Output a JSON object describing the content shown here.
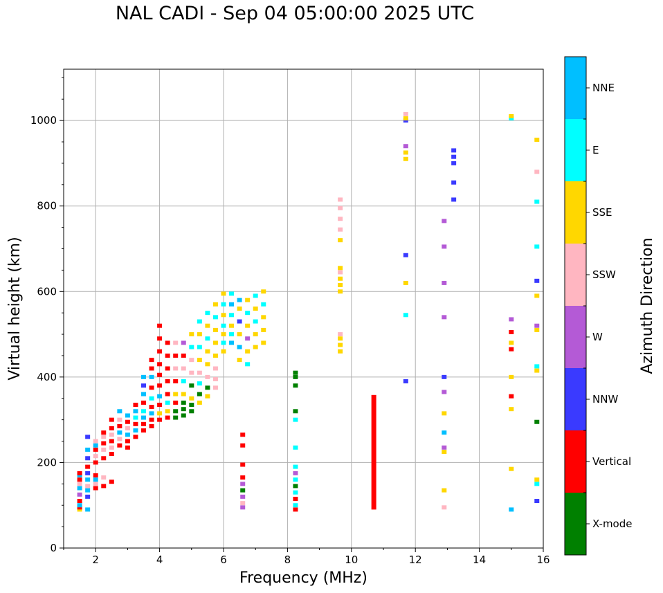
{
  "title": "NAL CADI - Sep 04 05:00:00 2025 UTC",
  "chart_data": {
    "type": "scatter",
    "title": "NAL CADI - Sep 04 05:00:00 2025 UTC",
    "xlabel": "Frequency (MHz)",
    "ylabel": "Virtual height (km)",
    "xlim": [
      1,
      16
    ],
    "ylim": [
      0,
      1120
    ],
    "xticks": [
      2,
      4,
      6,
      8,
      10,
      12,
      14,
      16
    ],
    "yticks": [
      0,
      200,
      400,
      600,
      800,
      1000
    ],
    "grid": true,
    "colorbar": {
      "label": "Azimuth Direction",
      "categories": [
        {
          "name": "X-mode",
          "color": "#008000"
        },
        {
          "name": "Vertical",
          "color": "#ff0000"
        },
        {
          "name": "NNW",
          "color": "#3a3aff"
        },
        {
          "name": "W",
          "color": "#b45ad6"
        },
        {
          "name": "SSW",
          "color": "#ffb6c1"
        },
        {
          "name": "SSE",
          "color": "#ffd700"
        },
        {
          "name": "E",
          "color": "#00ffff"
        },
        {
          "name": "NNE",
          "color": "#00bfff"
        }
      ]
    },
    "cluster_columns": [
      {
        "f": 1.5,
        "heights": [
          90,
          95,
          100,
          110,
          125,
          140,
          150,
          160,
          170,
          175
        ],
        "cats": [
          "SSE",
          "Vertical",
          "NNE",
          "Vertical",
          "W",
          "NNE",
          "SSW",
          "Vertical",
          "NNE",
          "Vertical"
        ]
      },
      {
        "f": 1.75,
        "heights": [
          90,
          120,
          135,
          145,
          160,
          175,
          190,
          210,
          230,
          260
        ],
        "cats": [
          "NNE",
          "NNW",
          "NNE",
          "SSW",
          "NNE",
          "NNW",
          "Vertical",
          "NNW",
          "NNE",
          "NNW"
        ]
      },
      {
        "f": 2.0,
        "heights": [
          140,
          150,
          160,
          170,
          200,
          215,
          230,
          240,
          250
        ],
        "cats": [
          "Vertical",
          "SSW",
          "NNE",
          "Vertical",
          "Vertical",
          "SSW",
          "Vertical",
          "NNE",
          "SSW"
        ]
      },
      {
        "f": 2.25,
        "heights": [
          145,
          165,
          210,
          230,
          245,
          260,
          270
        ],
        "cats": [
          "Vertical",
          "SSW",
          "Vertical",
          "SSW",
          "Vertical",
          "SSW",
          "Vertical"
        ]
      },
      {
        "f": 2.5,
        "heights": [
          155,
          220,
          235,
          250,
          265,
          280,
          300
        ],
        "cats": [
          "Vertical",
          "Vertical",
          "SSW",
          "Vertical",
          "SSW",
          "Vertical",
          "Vertical"
        ]
      },
      {
        "f": 2.75,
        "heights": [
          240,
          255,
          270,
          285,
          300,
          320
        ],
        "cats": [
          "Vertical",
          "SSW",
          "NNE",
          "Vertical",
          "SSW",
          "NNE"
        ]
      },
      {
        "f": 3.0,
        "heights": [
          235,
          250,
          265,
          280,
          295,
          310
        ],
        "cats": [
          "Vertical",
          "Vertical",
          "NNE",
          "SSW",
          "Vertical",
          "NNE"
        ]
      },
      {
        "f": 3.25,
        "heights": [
          260,
          275,
          290,
          305,
          320,
          335
        ],
        "cats": [
          "Vertical",
          "NNE",
          "Vertical",
          "E",
          "NNE",
          "Vertical"
        ]
      },
      {
        "f": 3.5,
        "heights": [
          275,
          290,
          305,
          320,
          340,
          360,
          380,
          400
        ],
        "cats": [
          "Vertical",
          "Vertical",
          "NNE",
          "E",
          "Vertical",
          "NNE",
          "NNW",
          "NNE"
        ]
      },
      {
        "f": 3.75,
        "heights": [
          285,
          300,
          315,
          330,
          350,
          375,
          400,
          420,
          440
        ],
        "cats": [
          "Vertical",
          "Vertical",
          "NNE",
          "Vertical",
          "E",
          "Vertical",
          "NNE",
          "Vertical",
          "Vertical"
        ]
      },
      {
        "f": 4.0,
        "heights": [
          300,
          315,
          335,
          355,
          380,
          405,
          430,
          460,
          490,
          520
        ],
        "cats": [
          "Vertical",
          "SSE",
          "Vertical",
          "NNE",
          "Vertical",
          "Vertical",
          "Vertical",
          "Vertical",
          "Vertical",
          "Vertical"
        ]
      },
      {
        "f": 4.25,
        "heights": [
          305,
          320,
          340,
          360,
          390,
          420,
          450,
          480
        ],
        "cats": [
          "Vertical",
          "SSE",
          "E",
          "Vertical",
          "Vertical",
          "Vertical",
          "Vertical",
          "Vertical"
        ]
      },
      {
        "f": 4.5,
        "heights": [
          305,
          320,
          340,
          360,
          390,
          420,
          450,
          480
        ],
        "cats": [
          "X-mode",
          "X-mode",
          "Vertical",
          "SSE",
          "Vertical",
          "SSW",
          "Vertical",
          "SSW"
        ]
      },
      {
        "f": 4.75,
        "heights": [
          310,
          325,
          340,
          360,
          390,
          420,
          450,
          480
        ],
        "cats": [
          "X-mode",
          "X-mode",
          "X-mode",
          "SSE",
          "E",
          "SSW",
          "Vertical",
          "W"
        ]
      },
      {
        "f": 5.0,
        "heights": [
          320,
          335,
          350,
          380,
          410,
          440,
          470,
          500
        ],
        "cats": [
          "X-mode",
          "X-mode",
          "SSE",
          "X-mode",
          "SSW",
          "SSW",
          "E",
          "SSE"
        ]
      },
      {
        "f": 5.25,
        "heights": [
          340,
          360,
          385,
          410,
          440,
          470,
          500,
          530
        ],
        "cats": [
          "SSE",
          "X-mode",
          "E",
          "SSW",
          "SSE",
          "E",
          "SSE",
          "E"
        ]
      },
      {
        "f": 5.5,
        "heights": [
          355,
          375,
          400,
          430,
          460,
          490,
          520,
          550
        ],
        "cats": [
          "SSE",
          "X-mode",
          "SSW",
          "SSE",
          "SSE",
          "E",
          "SSE",
          "E"
        ]
      },
      {
        "f": 5.75,
        "heights": [
          375,
          395,
          420,
          450,
          480,
          510,
          540,
          570
        ],
        "cats": [
          "SSW",
          "SSW",
          "SSW",
          "SSE",
          "SSE",
          "SSE",
          "E",
          "SSE"
        ]
      },
      {
        "f": 6.0,
        "heights": [
          460,
          480,
          500,
          520,
          545,
          570,
          595
        ],
        "cats": [
          "SSE",
          "E",
          "SSE",
          "E",
          "SSE",
          "E",
          "SSE"
        ]
      },
      {
        "f": 6.25,
        "heights": [
          480,
          500,
          520,
          545,
          570,
          595
        ],
        "cats": [
          "NNE",
          "E",
          "SSE",
          "E",
          "NNE",
          "E"
        ]
      },
      {
        "f": 6.5,
        "heights": [
          440,
          470,
          500,
          530,
          560,
          580
        ],
        "cats": [
          "SSE",
          "NNE",
          "SSE",
          "NNW",
          "SSE",
          "NNE"
        ]
      },
      {
        "f": 6.75,
        "heights": [
          430,
          460,
          490,
          520,
          550,
          580
        ],
        "cats": [
          "E",
          "SSE",
          "W",
          "SSE",
          "E",
          "SSE"
        ]
      },
      {
        "f": 7.0,
        "heights": [
          470,
          500,
          530,
          560,
          590
        ],
        "cats": [
          "SSE",
          "SSE",
          "E",
          "SSE",
          "E"
        ]
      },
      {
        "f": 7.25,
        "heights": [
          480,
          510,
          540,
          570,
          600
        ],
        "cats": [
          "SSE",
          "SSE",
          "SSE",
          "E",
          "SSE"
        ]
      },
      {
        "f": 6.6,
        "heights": [
          95,
          105,
          120,
          135,
          150,
          165,
          195,
          240,
          265
        ],
        "cats": [
          "W",
          "SSW",
          "W",
          "X-mode",
          "W",
          "Vertical",
          "Vertical",
          "Vertical",
          "Vertical"
        ]
      },
      {
        "f": 8.25,
        "heights": [
          90,
          100,
          115,
          130,
          145,
          160,
          175,
          190,
          235,
          300,
          320,
          380,
          400,
          410
        ],
        "cats": [
          "Vertical",
          "E",
          "Vertical",
          "E",
          "X-mode",
          "E",
          "W",
          "E",
          "E",
          "E",
          "X-mode",
          "X-mode",
          "X-mode",
          "X-mode"
        ]
      },
      {
        "f": 9.65,
        "heights": [
          460,
          475,
          490,
          500,
          600,
          615,
          630,
          645,
          655,
          720,
          745,
          770,
          795,
          815
        ],
        "cats": [
          "SSE",
          "SSE",
          "SSE",
          "SSW",
          "SSE",
          "SSE",
          "SSE",
          "SSW",
          "SSE",
          "SSE",
          "SSW",
          "SSW",
          "SSW",
          "SSW"
        ]
      },
      {
        "f": 13.2,
        "heights": [
          815,
          855,
          900,
          915,
          930
        ],
        "cats": [
          "NNW",
          "NNW",
          "NNW",
          "NNW",
          "NNW"
        ]
      },
      {
        "f": 12.9,
        "heights": [
          95,
          135,
          225,
          235,
          270,
          315,
          365,
          400,
          540,
          620,
          705,
          765
        ],
        "cats": [
          "SSW",
          "SSE",
          "SSE",
          "W",
          "NNE",
          "SSE",
          "W",
          "NNW",
          "W",
          "W",
          "W",
          "W"
        ]
      },
      {
        "f": 15.0,
        "heights": [
          90,
          185,
          325,
          355,
          400,
          465,
          480,
          505,
          535,
          1005,
          1010
        ],
        "cats": [
          "NNE",
          "SSE",
          "SSE",
          "Vertical",
          "SSE",
          "Vertical",
          "SSE",
          "Vertical",
          "W",
          "E",
          "SSE"
        ]
      },
      {
        "f": 15.8,
        "heights": [
          110,
          150,
          160,
          295,
          415,
          425,
          510,
          520,
          590,
          625,
          705,
          810,
          880,
          955
        ],
        "cats": [
          "NNW",
          "E",
          "SSE",
          "X-mode",
          "SSE",
          "E",
          "SSE",
          "W",
          "SSE",
          "NNW",
          "E",
          "E",
          "SSW",
          "SSE"
        ]
      },
      {
        "f": 11.7,
        "heights": [
          390,
          545,
          620,
          685,
          910,
          925,
          940,
          1000,
          1005,
          1015
        ],
        "cats": [
          "NNW",
          "E",
          "SSE",
          "NNW",
          "SSE",
          "SSE",
          "W",
          "NNW",
          "SSE",
          "SSW"
        ]
      }
    ],
    "vertical_bar": {
      "f": 10.7,
      "from": 90,
      "to": 358,
      "cat": "Vertical"
    }
  }
}
